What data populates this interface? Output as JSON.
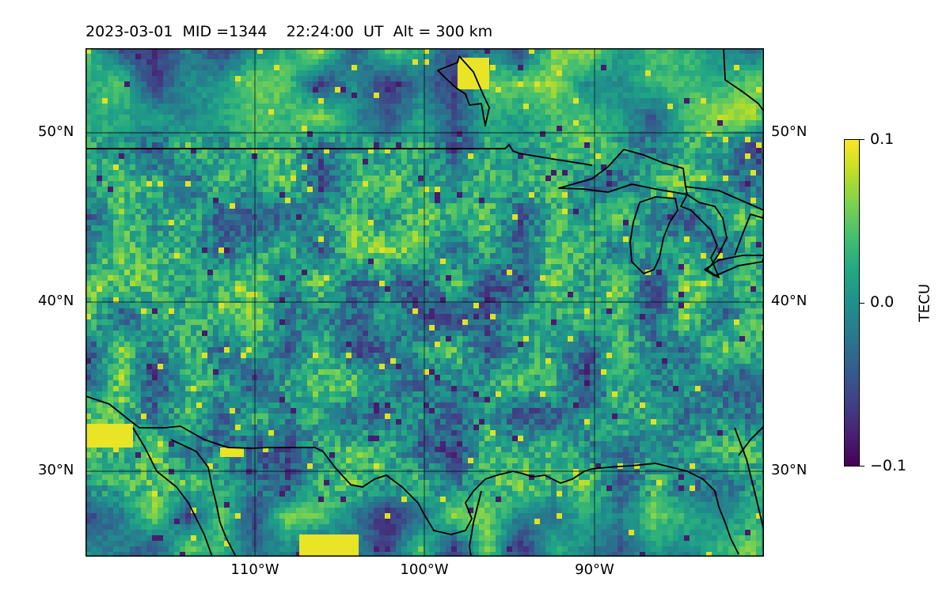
{
  "title": "2023-03-01  MID =1344    22:24:00  UT  Alt = 300 km",
  "map": {
    "lat_range": [
      25,
      55
    ],
    "lon_range": [
      -120,
      -80
    ],
    "lat_ticks": [
      {
        "value": 30,
        "label": "30°N"
      },
      {
        "value": 40,
        "label": "40°N"
      },
      {
        "value": 50,
        "label": "50°N"
      }
    ],
    "lon_ticks": [
      {
        "value": -110,
        "label": "110°W"
      },
      {
        "value": -100,
        "label": "100°W"
      },
      {
        "value": -90,
        "label": "90°W"
      }
    ]
  },
  "colorbar": {
    "label": "TECU",
    "min": -0.1,
    "max": 0.1,
    "ticks": [
      {
        "value": 0.1,
        "label": "0.1"
      },
      {
        "value": 0.0,
        "label": "0.0"
      },
      {
        "value": -0.1,
        "label": "−0.1"
      }
    ],
    "colormap": "viridis"
  },
  "colors": {
    "coastline": "#000000",
    "gridline": "#000000"
  }
}
